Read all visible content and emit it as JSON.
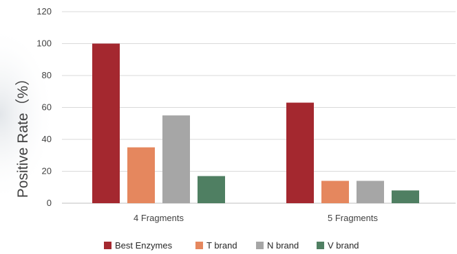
{
  "chart_data": {
    "type": "bar",
    "categories": [
      "4 Fragments",
      "5 Fragments"
    ],
    "series": [
      {
        "name": "Best Enzymes",
        "values": [
          100,
          63
        ],
        "color": "#A4282F"
      },
      {
        "name": "T brand",
        "values": [
          35,
          14
        ],
        "color": "#E5875E"
      },
      {
        "name": "N brand",
        "values": [
          55,
          14
        ],
        "color": "#A6A6A6"
      },
      {
        "name": "V brand",
        "values": [
          17,
          8
        ],
        "color": "#4F7F62"
      }
    ],
    "title": "",
    "xlabel": "",
    "ylabel": "Positive Rate（%）",
    "ylim": [
      0,
      120
    ],
    "yticks": [
      0,
      20,
      40,
      60,
      80,
      100,
      120
    ],
    "grid": true,
    "legend_position": "bottom"
  }
}
